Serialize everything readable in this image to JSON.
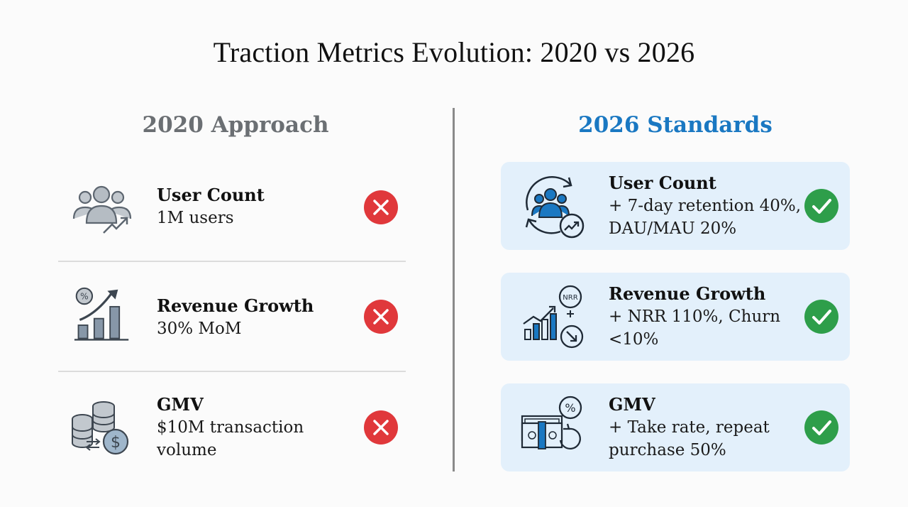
{
  "title": "Traction Metrics Evolution: 2020 vs 2026",
  "left": {
    "heading": "2020 Approach",
    "rows": [
      {
        "name": "User Count",
        "desc": "1M users",
        "icon": "users-growth-icon"
      },
      {
        "name": "Revenue Growth",
        "desc": "30% MoM",
        "icon": "revenue-chart-icon"
      },
      {
        "name": "GMV",
        "desc": "$10M transaction volume",
        "icon": "coins-dollar-icon"
      }
    ],
    "status_icon": "x-circle-icon",
    "status_color": "#e0383b"
  },
  "right": {
    "heading": "2026 Standards",
    "rows": [
      {
        "name": "User Count",
        "desc": "+ 7-day retention 40%, DAU/MAU 20%",
        "icon": "users-cycle-icon"
      },
      {
        "name": "Revenue Growth",
        "desc": "+ NRR 110%, Churn <10%",
        "icon": "nrr-chart-icon",
        "badge": "NRR"
      },
      {
        "name": "GMV",
        "desc": "+ Take rate, repeat purchase 50%",
        "icon": "cash-percent-icon",
        "badge": "%"
      }
    ],
    "status_icon": "check-circle-icon",
    "status_color": "#2e9e4a",
    "card_color": "#e3f0fb",
    "accent": "#1a78c2"
  }
}
